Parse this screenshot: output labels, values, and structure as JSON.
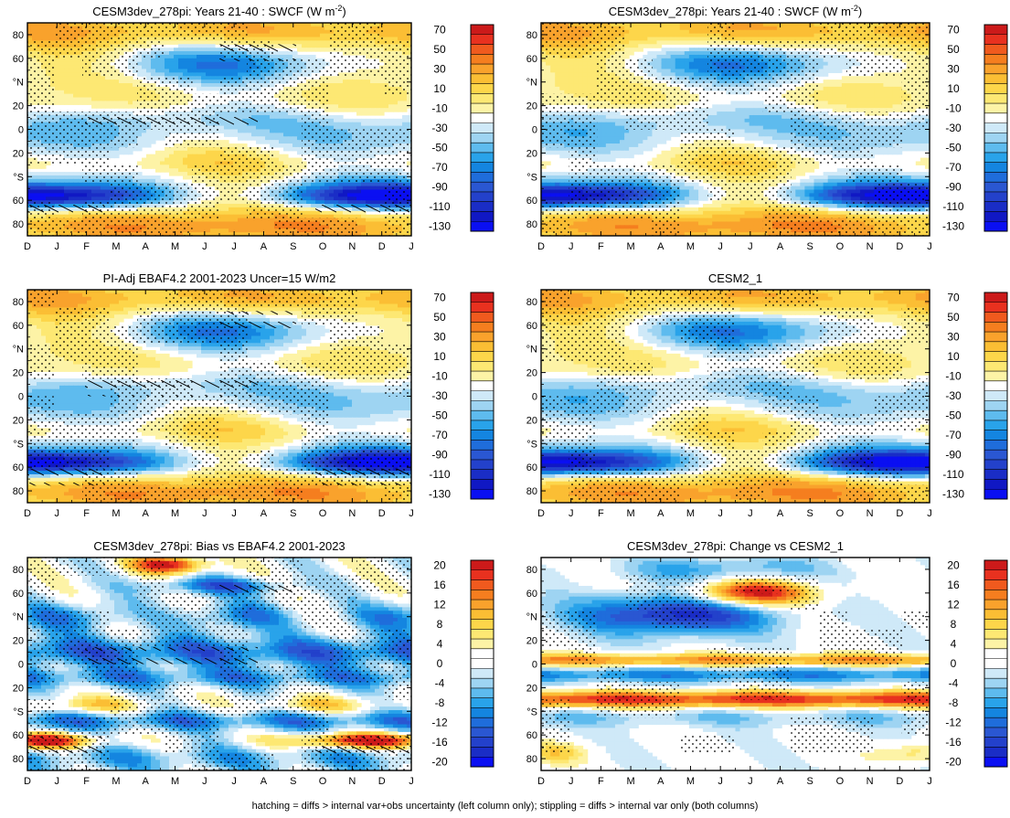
{
  "figure": {
    "caption": "hatching = diffs > internal var+obs uncertainty (left column only); stippling = diffs > internal var only (both columns)"
  },
  "palettes": {
    "mean": [
      {
        "label": "70",
        "color": "#cc1a1a"
      },
      {
        "label": "",
        "color": "#e8311f"
      },
      {
        "label": "50",
        "color": "#f05a1e"
      },
      {
        "label": "",
        "color": "#f57e1f"
      },
      {
        "label": "30",
        "color": "#f9a22c"
      },
      {
        "label": "",
        "color": "#fbbe34"
      },
      {
        "label": "10",
        "color": "#fdd64a"
      },
      {
        "label": "",
        "color": "#fde873"
      },
      {
        "label": "-10",
        "color": "#fdf3a6"
      },
      {
        "label": "",
        "color": "#ffffff"
      },
      {
        "label": "-30",
        "color": "#cfe9f8"
      },
      {
        "label": "",
        "color": "#9ed4f2"
      },
      {
        "label": "-50",
        "color": "#5ebbee"
      },
      {
        "label": "",
        "color": "#29a3ea"
      },
      {
        "label": "-70",
        "color": "#1485e0"
      },
      {
        "label": "",
        "color": "#1f6ddb"
      },
      {
        "label": "-90",
        "color": "#2a57d2"
      },
      {
        "label": "",
        "color": "#2341cb"
      },
      {
        "label": "-110",
        "color": "#1a2dc6"
      },
      {
        "label": "",
        "color": "#1018c4"
      },
      {
        "label": "-130",
        "color": "#0a0ff2"
      }
    ],
    "diff": [
      {
        "label": "20",
        "color": "#cc1a1a"
      },
      {
        "label": "",
        "color": "#e8311f"
      },
      {
        "label": "16",
        "color": "#f05a1e"
      },
      {
        "label": "",
        "color": "#f57e1f"
      },
      {
        "label": "12",
        "color": "#f9a22c"
      },
      {
        "label": "",
        "color": "#fbbe34"
      },
      {
        "label": "8",
        "color": "#fdd64a"
      },
      {
        "label": "",
        "color": "#fde873"
      },
      {
        "label": "4",
        "color": "#fdf3a6"
      },
      {
        "label": "",
        "color": "#ffffff"
      },
      {
        "label": "0",
        "color": "#ffffff"
      },
      {
        "label": "",
        "color": "#cfe9f8"
      },
      {
        "label": "-4",
        "color": "#9ed4f2"
      },
      {
        "label": "",
        "color": "#5ebbee"
      },
      {
        "label": "-8",
        "color": "#29a3ea"
      },
      {
        "label": "",
        "color": "#1485e0"
      },
      {
        "label": "-12",
        "color": "#1f6ddb"
      },
      {
        "label": "",
        "color": "#2a57d2"
      },
      {
        "label": "-16",
        "color": "#2341cb"
      },
      {
        "label": "",
        "color": "#1a2dc6"
      },
      {
        "label": "-20",
        "color": "#0a0ff2"
      }
    ]
  },
  "chart_data": [
    {
      "type": "heatmap",
      "panel": "top-left",
      "title": "CESM3dev_278pi: Years 21-40 : SWCF (W m",
      "title_sup": "-2",
      "title_end": ")",
      "x_ticks": [
        "D",
        "J",
        "F",
        "M",
        "A",
        "M",
        "J",
        "J",
        "A",
        "S",
        "O",
        "N",
        "D",
        "J"
      ],
      "y_ticks": [
        "80",
        "60",
        "°N",
        "20",
        "0",
        "20",
        "°S",
        "60",
        "80"
      ],
      "colorbar": "mean",
      "value_range": [
        -130,
        70
      ],
      "pattern": "mean",
      "variant": 0,
      "hatching": true
    },
    {
      "type": "heatmap",
      "panel": "top-right",
      "title": "CESM3dev_278pi: Years 21-40 : SWCF (W m",
      "title_sup": "-2",
      "title_end": ")",
      "x_ticks": [
        "D",
        "J",
        "F",
        "M",
        "A",
        "M",
        "J",
        "J",
        "A",
        "S",
        "O",
        "N",
        "D",
        "J"
      ],
      "y_ticks": [
        "80",
        "60",
        "°N",
        "20",
        "0",
        "20",
        "°S",
        "60",
        "80"
      ],
      "colorbar": "mean",
      "value_range": [
        -130,
        70
      ],
      "pattern": "mean",
      "variant": 1,
      "hatching": false
    },
    {
      "type": "heatmap",
      "panel": "middle-left",
      "title": "PI-Adj EBAF4.2 2001-2023 Uncer=15 W/m2",
      "title_sup": "",
      "title_end": "",
      "x_ticks": [
        "D",
        "J",
        "F",
        "M",
        "A",
        "M",
        "J",
        "J",
        "A",
        "S",
        "O",
        "N",
        "D",
        "J"
      ],
      "y_ticks": [
        "80",
        "60",
        "°N",
        "20",
        "0",
        "20",
        "°S",
        "60",
        "80"
      ],
      "colorbar": "mean",
      "value_range": [
        -130,
        70
      ],
      "pattern": "mean",
      "variant": 2,
      "hatching": true
    },
    {
      "type": "heatmap",
      "panel": "middle-right",
      "title": "CESM2_1",
      "title_sup": "",
      "title_end": "",
      "x_ticks": [
        "D",
        "J",
        "F",
        "M",
        "A",
        "M",
        "J",
        "J",
        "A",
        "S",
        "O",
        "N",
        "D",
        "J"
      ],
      "y_ticks": [
        "80",
        "60",
        "°N",
        "20",
        "0",
        "20",
        "°S",
        "60",
        "80"
      ],
      "colorbar": "mean",
      "value_range": [
        -130,
        70
      ],
      "pattern": "mean",
      "variant": 3,
      "hatching": false
    },
    {
      "type": "heatmap",
      "panel": "bottom-left",
      "title": "CESM3dev_278pi: Bias vs EBAF4.2 2001-2023",
      "title_sup": "",
      "title_end": "",
      "x_ticks": [
        "D",
        "J",
        "F",
        "M",
        "A",
        "M",
        "J",
        "J",
        "A",
        "S",
        "O",
        "N",
        "D",
        "J"
      ],
      "y_ticks": [
        "80",
        "60",
        "°N",
        "20",
        "0",
        "20",
        "°S",
        "60",
        "80"
      ],
      "colorbar": "diff",
      "value_range": [
        -20,
        20
      ],
      "pattern": "bias",
      "variant": 4,
      "hatching": true
    },
    {
      "type": "heatmap",
      "panel": "bottom-right",
      "title": "CESM3dev_278pi: Change vs CESM2_1",
      "title_sup": "",
      "title_end": "",
      "x_ticks": [
        "D",
        "J",
        "F",
        "M",
        "A",
        "M",
        "J",
        "J",
        "A",
        "S",
        "O",
        "N",
        "D",
        "J"
      ],
      "y_ticks": [
        "80",
        "60",
        "°N",
        "20",
        "0",
        "20",
        "°S",
        "60",
        "80"
      ],
      "colorbar": "diff",
      "value_range": [
        -20,
        20
      ],
      "pattern": "change",
      "variant": 5,
      "hatching": false
    }
  ]
}
